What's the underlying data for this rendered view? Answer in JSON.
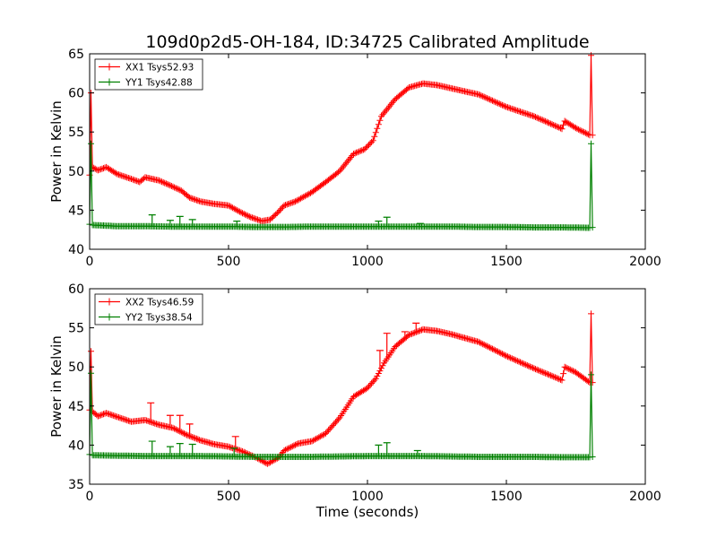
{
  "figure_title": "109d0p2d5-OH-184, ID:34725 Calibrated Amplitude",
  "colors": {
    "xx": "#ff0000",
    "yy": "#008000",
    "axes": "#000000"
  },
  "chart_data": [
    {
      "type": "line",
      "title": "109d0p2d5-OH-184, ID:34725 Calibrated Amplitude",
      "xlabel": "",
      "ylabel": "Power in Kelvin",
      "xlim": [
        0,
        2000
      ],
      "ylim": [
        40,
        65
      ],
      "xticks": [
        0,
        500,
        1000,
        1500,
        2000
      ],
      "yticks": [
        40,
        45,
        50,
        55,
        60,
        65
      ],
      "xtick_labels": [
        "0",
        "500",
        "1000",
        "1500",
        "2000"
      ],
      "ytick_labels": [
        "40",
        "45",
        "50",
        "55",
        "60",
        "65"
      ],
      "grid": false,
      "legend": "top-left",
      "marker": "+",
      "series": [
        {
          "name": "XX1 Tsys52.93",
          "color": "#ff0000",
          "x": [
            0,
            5,
            10,
            30,
            60,
            100,
            150,
            180,
            200,
            250,
            300,
            330,
            360,
            400,
            450,
            500,
            540,
            580,
            620,
            650,
            680,
            700,
            740,
            800,
            850,
            900,
            950,
            990,
            1020,
            1050,
            1100,
            1150,
            1200,
            1250,
            1300,
            1400,
            1500,
            1600,
            1700,
            1710,
            1750,
            1800,
            1805,
            1810
          ],
          "y": [
            49.5,
            60,
            50.5,
            50.1,
            50.5,
            49.6,
            49.0,
            48.6,
            49.2,
            48.8,
            48.0,
            47.5,
            46.6,
            46.1,
            45.8,
            45.6,
            44.8,
            44.1,
            43.6,
            43.8,
            44.8,
            45.6,
            46.1,
            47.3,
            48.6,
            50.0,
            52.2,
            52.8,
            53.9,
            57.0,
            59.2,
            60.7,
            61.2,
            61.0,
            60.6,
            59.8,
            58.2,
            57.0,
            55.4,
            56.4,
            55.5,
            54.6,
            64.8,
            54.6
          ],
          "spikes": []
        },
        {
          "name": "YY1 Tsys42.88",
          "color": "#008000",
          "x": [
            0,
            5,
            10,
            100,
            200,
            300,
            400,
            500,
            600,
            700,
            800,
            900,
            1000,
            1100,
            1200,
            1300,
            1400,
            1500,
            1600,
            1700,
            1800,
            1805,
            1810
          ],
          "y": [
            43.2,
            53.5,
            43.1,
            42.95,
            42.95,
            42.9,
            42.9,
            42.9,
            42.85,
            42.85,
            42.9,
            42.9,
            42.9,
            42.9,
            42.9,
            42.9,
            42.85,
            42.85,
            42.8,
            42.8,
            42.75,
            53.5,
            42.8
          ],
          "spikes": [
            [
              225,
              44.4
            ],
            [
              290,
              43.7
            ],
            [
              325,
              44.2
            ],
            [
              370,
              43.8
            ],
            [
              530,
              43.6
            ],
            [
              1040,
              43.6
            ],
            [
              1070,
              44.1
            ],
            [
              1190,
              43.3
            ]
          ]
        }
      ]
    },
    {
      "type": "line",
      "title": "",
      "xlabel": "Time (seconds)",
      "ylabel": "Power in Kelvin",
      "xlim": [
        0,
        2000
      ],
      "ylim": [
        35,
        60
      ],
      "xticks": [
        0,
        500,
        1000,
        1500,
        2000
      ],
      "yticks": [
        35,
        40,
        45,
        50,
        55,
        60
      ],
      "xtick_labels": [
        "0",
        "500",
        "1000",
        "1500",
        "2000"
      ],
      "ytick_labels": [
        "35",
        "40",
        "45",
        "50",
        "55",
        "60"
      ],
      "grid": false,
      "legend": "top-left",
      "marker": "+",
      "series": [
        {
          "name": "XX2 Tsys46.59",
          "color": "#ff0000",
          "x": [
            0,
            5,
            10,
            30,
            60,
            100,
            150,
            200,
            250,
            300,
            350,
            400,
            450,
            500,
            550,
            600,
            640,
            680,
            700,
            750,
            800,
            850,
            900,
            950,
            1000,
            1030,
            1060,
            1100,
            1150,
            1200,
            1250,
            1300,
            1400,
            1500,
            1600,
            1700,
            1710,
            1750,
            1800,
            1805,
            1810
          ],
          "y": [
            44.5,
            52,
            44.3,
            43.7,
            44.1,
            43.6,
            43.0,
            43.2,
            42.6,
            42.2,
            41.3,
            40.6,
            40.1,
            39.8,
            39.2,
            38.4,
            37.6,
            38.4,
            39.3,
            40.2,
            40.5,
            41.5,
            43.5,
            46.2,
            47.3,
            48.5,
            50.5,
            52.6,
            54.1,
            54.8,
            54.6,
            54.2,
            53.2,
            51.4,
            49.8,
            48.3,
            50.0,
            49.3,
            48.0,
            56.8,
            48.0
          ],
          "spikes": [
            [
              220,
              45.4
            ],
            [
              290,
              43.8
            ],
            [
              325,
              43.8
            ],
            [
              360,
              42.7
            ],
            [
              525,
              41.1
            ],
            [
              1045,
              52.1
            ],
            [
              1070,
              54.3
            ],
            [
              1135,
              54.5
            ],
            [
              1175,
              55.6
            ]
          ]
        },
        {
          "name": "YY2 Tsys38.54",
          "color": "#008000",
          "x": [
            0,
            5,
            10,
            100,
            200,
            300,
            400,
            500,
            600,
            700,
            800,
            900,
            1000,
            1100,
            1200,
            1300,
            1400,
            1500,
            1600,
            1700,
            1800,
            1805,
            1810
          ],
          "y": [
            38.8,
            49.2,
            38.7,
            38.65,
            38.6,
            38.6,
            38.6,
            38.55,
            38.5,
            38.5,
            38.5,
            38.55,
            38.6,
            38.6,
            38.6,
            38.55,
            38.5,
            38.5,
            38.5,
            38.45,
            38.45,
            49.0,
            38.5
          ],
          "spikes": [
            [
              225,
              40.5
            ],
            [
              290,
              39.8
            ],
            [
              325,
              40.2
            ],
            [
              370,
              40.1
            ],
            [
              520,
              39.6
            ],
            [
              1040,
              40.0
            ],
            [
              1070,
              40.3
            ],
            [
              1180,
              39.3
            ]
          ]
        }
      ]
    }
  ]
}
